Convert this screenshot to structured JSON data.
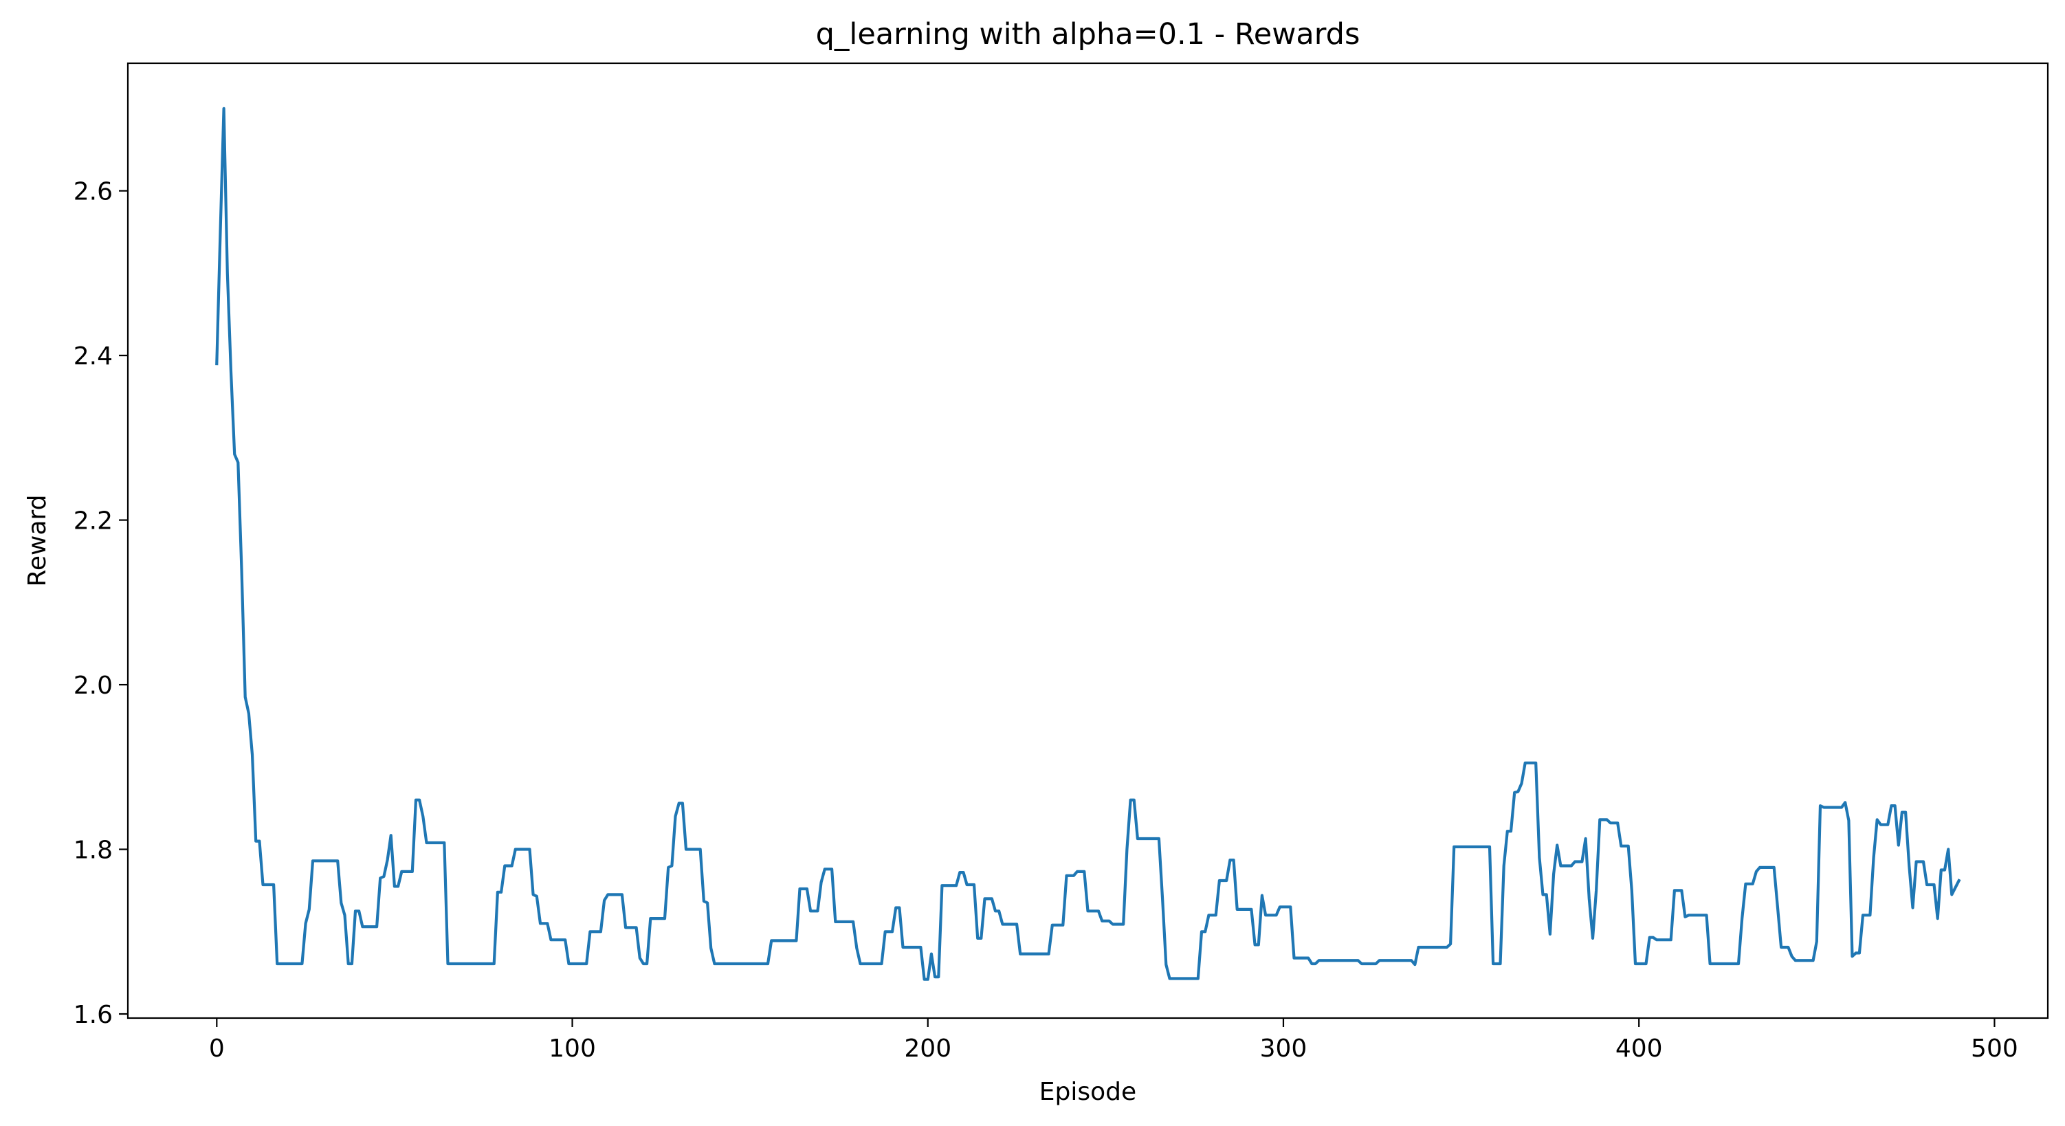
{
  "chart_data": {
    "type": "line",
    "title": "q_learning with alpha=0.1 - Rewards",
    "xlabel": "Episode",
    "ylabel": "Reward",
    "xlim": [
      -25,
      515
    ],
    "ylim": [
      1.595,
      2.755
    ],
    "xticks": [
      0,
      100,
      200,
      300,
      400,
      500
    ],
    "xtick_labels": [
      "0",
      "100",
      "200",
      "300",
      "400",
      "500"
    ],
    "yticks": [
      1.6,
      1.8,
      2.0,
      2.2,
      2.4,
      2.6
    ],
    "ytick_labels": [
      "1.6",
      "1.8",
      "2.0",
      "2.2",
      "2.4",
      "2.6"
    ],
    "grid": false,
    "series": [
      {
        "color": "#1f77b4",
        "points": [
          [
            0,
            2.39
          ],
          [
            1,
            2.55
          ],
          [
            2,
            2.7
          ],
          [
            3,
            2.5
          ],
          [
            4,
            2.38
          ],
          [
            5,
            2.28
          ],
          [
            6,
            2.27
          ],
          [
            7,
            2.14
          ],
          [
            8,
            1.985
          ],
          [
            9,
            1.965
          ],
          [
            10,
            1.915
          ],
          [
            11,
            1.81
          ],
          [
            12,
            1.81
          ],
          [
            13,
            1.757
          ],
          [
            16,
            1.757
          ],
          [
            17,
            1.661
          ],
          [
            24,
            1.661
          ],
          [
            25,
            1.71
          ],
          [
            26,
            1.727
          ],
          [
            27,
            1.786
          ],
          [
            34,
            1.786
          ],
          [
            35,
            1.735
          ],
          [
            36,
            1.72
          ],
          [
            37,
            1.661
          ],
          [
            38,
            1.661
          ],
          [
            39,
            1.725
          ],
          [
            40,
            1.725
          ],
          [
            41,
            1.706
          ],
          [
            45,
            1.706
          ],
          [
            46,
            1.765
          ],
          [
            47,
            1.767
          ],
          [
            48,
            1.787
          ],
          [
            49,
            1.817
          ],
          [
            50,
            1.755
          ],
          [
            51,
            1.755
          ],
          [
            52,
            1.773
          ],
          [
            55,
            1.773
          ],
          [
            56,
            1.86
          ],
          [
            57,
            1.86
          ],
          [
            58,
            1.84
          ],
          [
            59,
            1.808
          ],
          [
            64,
            1.808
          ],
          [
            65,
            1.661
          ],
          [
            78,
            1.661
          ],
          [
            79,
            1.748
          ],
          [
            80,
            1.748
          ],
          [
            81,
            1.78
          ],
          [
            83,
            1.78
          ],
          [
            84,
            1.8
          ],
          [
            88,
            1.8
          ],
          [
            89,
            1.745
          ],
          [
            90,
            1.743
          ],
          [
            91,
            1.71
          ],
          [
            93,
            1.71
          ],
          [
            94,
            1.69
          ],
          [
            98,
            1.69
          ],
          [
            99,
            1.661
          ],
          [
            104,
            1.661
          ],
          [
            105,
            1.7
          ],
          [
            108,
            1.7
          ],
          [
            109,
            1.738
          ],
          [
            110,
            1.745
          ],
          [
            114,
            1.745
          ],
          [
            115,
            1.705
          ],
          [
            118,
            1.705
          ],
          [
            119,
            1.668
          ],
          [
            120,
            1.661
          ],
          [
            121,
            1.661
          ],
          [
            122,
            1.716
          ],
          [
            126,
            1.716
          ],
          [
            127,
            1.778
          ],
          [
            128,
            1.78
          ],
          [
            129,
            1.84
          ],
          [
            130,
            1.856
          ],
          [
            131,
            1.856
          ],
          [
            132,
            1.8
          ],
          [
            136,
            1.8
          ],
          [
            137,
            1.737
          ],
          [
            138,
            1.735
          ],
          [
            139,
            1.68
          ],
          [
            140,
            1.661
          ],
          [
            155,
            1.661
          ],
          [
            156,
            1.689
          ],
          [
            163,
            1.689
          ],
          [
            164,
            1.752
          ],
          [
            166,
            1.752
          ],
          [
            167,
            1.725
          ],
          [
            169,
            1.725
          ],
          [
            170,
            1.76
          ],
          [
            171,
            1.776
          ],
          [
            173,
            1.776
          ],
          [
            174,
            1.712
          ],
          [
            179,
            1.712
          ],
          [
            180,
            1.68
          ],
          [
            181,
            1.661
          ],
          [
            187,
            1.661
          ],
          [
            188,
            1.7
          ],
          [
            190,
            1.7
          ],
          [
            191,
            1.729
          ],
          [
            192,
            1.729
          ],
          [
            193,
            1.681
          ],
          [
            198,
            1.681
          ],
          [
            199,
            1.642
          ],
          [
            200,
            1.642
          ],
          [
            201,
            1.673
          ],
          [
            202,
            1.645
          ],
          [
            203,
            1.645
          ],
          [
            204,
            1.756
          ],
          [
            208,
            1.756
          ],
          [
            209,
            1.772
          ],
          [
            210,
            1.772
          ],
          [
            211,
            1.757
          ],
          [
            213,
            1.757
          ],
          [
            214,
            1.692
          ],
          [
            215,
            1.692
          ],
          [
            216,
            1.74
          ],
          [
            218,
            1.74
          ],
          [
            219,
            1.725
          ],
          [
            220,
            1.725
          ],
          [
            221,
            1.709
          ],
          [
            225,
            1.709
          ],
          [
            226,
            1.673
          ],
          [
            234,
            1.673
          ],
          [
            235,
            1.708
          ],
          [
            238,
            1.708
          ],
          [
            239,
            1.768
          ],
          [
            241,
            1.768
          ],
          [
            242,
            1.773
          ],
          [
            244,
            1.773
          ],
          [
            245,
            1.725
          ],
          [
            248,
            1.725
          ],
          [
            249,
            1.713
          ],
          [
            251,
            1.713
          ],
          [
            252,
            1.709
          ],
          [
            255,
            1.709
          ],
          [
            256,
            1.8
          ],
          [
            257,
            1.86
          ],
          [
            258,
            1.86
          ],
          [
            259,
            1.813
          ],
          [
            265,
            1.813
          ],
          [
            266,
            1.74
          ],
          [
            267,
            1.66
          ],
          [
            268,
            1.643
          ],
          [
            276,
            1.643
          ],
          [
            277,
            1.7
          ],
          [
            278,
            1.7
          ],
          [
            279,
            1.72
          ],
          [
            281,
            1.72
          ],
          [
            282,
            1.762
          ],
          [
            284,
            1.762
          ],
          [
            285,
            1.787
          ],
          [
            286,
            1.787
          ],
          [
            287,
            1.727
          ],
          [
            291,
            1.727
          ],
          [
            292,
            1.684
          ],
          [
            293,
            1.684
          ],
          [
            294,
            1.744
          ],
          [
            295,
            1.72
          ],
          [
            298,
            1.72
          ],
          [
            299,
            1.73
          ],
          [
            302,
            1.73
          ],
          [
            303,
            1.668
          ],
          [
            307,
            1.668
          ],
          [
            308,
            1.661
          ],
          [
            309,
            1.661
          ],
          [
            310,
            1.665
          ],
          [
            321,
            1.665
          ],
          [
            322,
            1.661
          ],
          [
            326,
            1.661
          ],
          [
            327,
            1.665
          ],
          [
            336,
            1.665
          ],
          [
            337,
            1.66
          ],
          [
            338,
            1.681
          ],
          [
            346,
            1.681
          ],
          [
            347,
            1.685
          ],
          [
            348,
            1.803
          ],
          [
            358,
            1.803
          ],
          [
            359,
            1.661
          ],
          [
            361,
            1.661
          ],
          [
            362,
            1.78
          ],
          [
            363,
            1.822
          ],
          [
            364,
            1.822
          ],
          [
            365,
            1.869
          ],
          [
            366,
            1.87
          ],
          [
            367,
            1.88
          ],
          [
            368,
            1.905
          ],
          [
            371,
            1.905
          ],
          [
            372,
            1.79
          ],
          [
            373,
            1.745
          ],
          [
            374,
            1.745
          ],
          [
            375,
            1.697
          ],
          [
            376,
            1.77
          ],
          [
            377,
            1.805
          ],
          [
            378,
            1.78
          ],
          [
            381,
            1.78
          ],
          [
            382,
            1.785
          ],
          [
            384,
            1.785
          ],
          [
            385,
            1.813
          ],
          [
            386,
            1.74
          ],
          [
            387,
            1.692
          ],
          [
            388,
            1.75
          ],
          [
            389,
            1.836
          ],
          [
            391,
            1.836
          ],
          [
            392,
            1.832
          ],
          [
            394,
            1.832
          ],
          [
            395,
            1.804
          ],
          [
            397,
            1.804
          ],
          [
            398,
            1.75
          ],
          [
            399,
            1.661
          ],
          [
            402,
            1.661
          ],
          [
            403,
            1.693
          ],
          [
            404,
            1.693
          ],
          [
            405,
            1.69
          ],
          [
            409,
            1.69
          ],
          [
            410,
            1.75
          ],
          [
            412,
            1.75
          ],
          [
            413,
            1.718
          ],
          [
            414,
            1.72
          ],
          [
            419,
            1.72
          ],
          [
            420,
            1.661
          ],
          [
            428,
            1.661
          ],
          [
            429,
            1.716
          ],
          [
            430,
            1.758
          ],
          [
            432,
            1.758
          ],
          [
            433,
            1.773
          ],
          [
            434,
            1.778
          ],
          [
            438,
            1.778
          ],
          [
            439,
            1.73
          ],
          [
            440,
            1.681
          ],
          [
            442,
            1.681
          ],
          [
            443,
            1.67
          ],
          [
            444,
            1.665
          ],
          [
            449,
            1.665
          ],
          [
            450,
            1.688
          ],
          [
            451,
            1.853
          ],
          [
            452,
            1.851
          ],
          [
            457,
            1.851
          ],
          [
            458,
            1.857
          ],
          [
            459,
            1.835
          ],
          [
            460,
            1.67
          ],
          [
            461,
            1.674
          ],
          [
            462,
            1.674
          ],
          [
            463,
            1.72
          ],
          [
            465,
            1.72
          ],
          [
            466,
            1.79
          ],
          [
            467,
            1.836
          ],
          [
            468,
            1.83
          ],
          [
            470,
            1.83
          ],
          [
            471,
            1.853
          ],
          [
            472,
            1.853
          ],
          [
            473,
            1.805
          ],
          [
            474,
            1.845
          ],
          [
            475,
            1.845
          ],
          [
            476,
            1.78
          ],
          [
            477,
            1.729
          ],
          [
            478,
            1.785
          ],
          [
            480,
            1.785
          ],
          [
            481,
            1.757
          ],
          [
            483,
            1.757
          ],
          [
            484,
            1.716
          ],
          [
            485,
            1.775
          ],
          [
            486,
            1.775
          ],
          [
            487,
            1.8
          ],
          [
            488,
            1.745
          ],
          [
            490,
            1.762
          ]
        ]
      }
    ]
  }
}
